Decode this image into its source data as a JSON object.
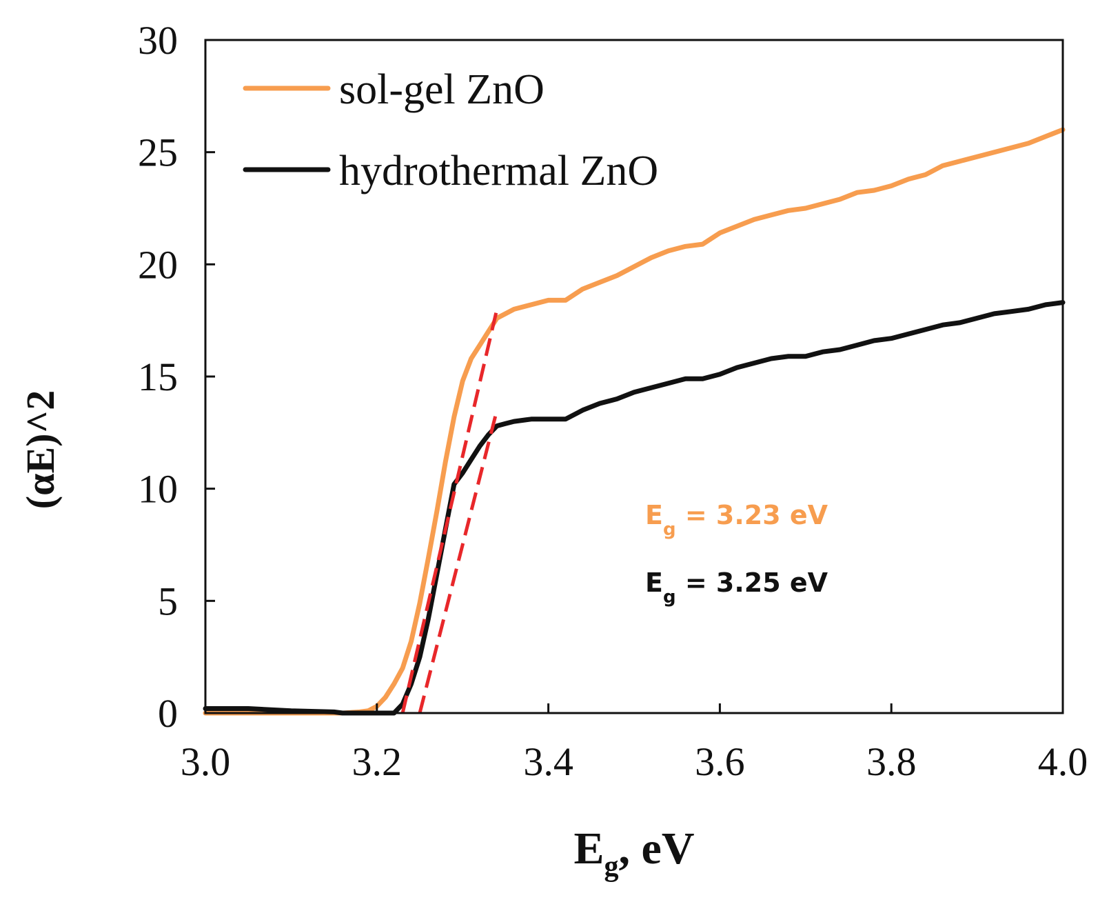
{
  "chart_data": {
    "type": "line",
    "title": "",
    "xlabel": {
      "main": "E",
      "sub": "g",
      "rest": ", eV"
    },
    "ylabel": "(αE)^2",
    "xlim": [
      3.0,
      4.0
    ],
    "ylim": [
      0,
      30
    ],
    "xticks": [
      3.0,
      3.2,
      3.4,
      3.6,
      3.8,
      4.0
    ],
    "xtick_labels": [
      "3.0",
      "3.2",
      "3.4",
      "3.6",
      "3.8",
      "4.0"
    ],
    "yticks": [
      0,
      5,
      10,
      15,
      20,
      25,
      30
    ],
    "ytick_labels": [
      "0",
      "5",
      "10",
      "15",
      "20",
      "25",
      "30"
    ],
    "grid": false,
    "legend_position": "top-left",
    "series": [
      {
        "name": "sol-gel ZnO",
        "color": "#F79D4F",
        "x": [
          3.0,
          3.1,
          3.16,
          3.18,
          3.19,
          3.2,
          3.21,
          3.22,
          3.23,
          3.24,
          3.25,
          3.26,
          3.27,
          3.28,
          3.29,
          3.3,
          3.31,
          3.32,
          3.33,
          3.34,
          3.35,
          3.36,
          3.38,
          3.4,
          3.42,
          3.44,
          3.46,
          3.48,
          3.5,
          3.52,
          3.54,
          3.56,
          3.58,
          3.6,
          3.62,
          3.64,
          3.66,
          3.68,
          3.7,
          3.72,
          3.74,
          3.76,
          3.78,
          3.8,
          3.82,
          3.84,
          3.86,
          3.88,
          3.9,
          3.92,
          3.94,
          3.96,
          3.98,
          4.0
        ],
        "y": [
          0.0,
          0.0,
          0.0,
          0.05,
          0.1,
          0.3,
          0.7,
          1.3,
          2.0,
          3.2,
          4.9,
          6.9,
          9.0,
          11.2,
          13.2,
          14.8,
          15.8,
          16.4,
          17.0,
          17.6,
          17.8,
          18.0,
          18.2,
          18.4,
          18.4,
          18.9,
          19.2,
          19.5,
          19.9,
          20.3,
          20.6,
          20.8,
          20.9,
          21.4,
          21.7,
          22.0,
          22.2,
          22.4,
          22.5,
          22.7,
          22.9,
          23.2,
          23.3,
          23.5,
          23.8,
          24.0,
          24.4,
          24.6,
          24.8,
          25.0,
          25.2,
          25.4,
          25.7,
          26.0
        ]
      },
      {
        "name": "hydrothermal ZnO",
        "color": "#111111",
        "x": [
          3.0,
          3.05,
          3.1,
          3.15,
          3.16,
          3.18,
          3.2,
          3.22,
          3.23,
          3.24,
          3.25,
          3.26,
          3.27,
          3.28,
          3.29,
          3.3,
          3.31,
          3.32,
          3.33,
          3.34,
          3.35,
          3.36,
          3.38,
          3.4,
          3.42,
          3.44,
          3.46,
          3.48,
          3.5,
          3.52,
          3.54,
          3.56,
          3.58,
          3.6,
          3.62,
          3.64,
          3.66,
          3.68,
          3.7,
          3.72,
          3.74,
          3.76,
          3.78,
          3.8,
          3.82,
          3.84,
          3.86,
          3.88,
          3.9,
          3.92,
          3.94,
          3.96,
          3.98,
          4.0
        ],
        "y": [
          0.2,
          0.2,
          0.1,
          0.05,
          0.0,
          0.0,
          0.0,
          0.0,
          0.4,
          1.3,
          2.5,
          4.2,
          6.2,
          8.2,
          10.2,
          10.7,
          11.3,
          11.9,
          12.4,
          12.8,
          12.9,
          13.0,
          13.1,
          13.1,
          13.1,
          13.5,
          13.8,
          14.0,
          14.3,
          14.5,
          14.7,
          14.9,
          14.9,
          15.1,
          15.4,
          15.6,
          15.8,
          15.9,
          15.9,
          16.1,
          16.2,
          16.4,
          16.6,
          16.7,
          16.9,
          17.1,
          17.3,
          17.4,
          17.6,
          17.8,
          17.9,
          18.0,
          18.2,
          18.3
        ]
      }
    ],
    "fit_lines": [
      {
        "name": "sol-gel tangent",
        "color": "#E8272A",
        "x": [
          3.23,
          3.34
        ],
        "y": [
          0.0,
          18.0
        ]
      },
      {
        "name": "hydrothermal tangent",
        "color": "#E8272A",
        "x": [
          3.25,
          3.34
        ],
        "y": [
          0.0,
          13.5
        ]
      }
    ],
    "annotations": [
      {
        "main": "E",
        "sub": "g",
        "rest": " = 3.23 eV",
        "color": "#F79D4F"
      },
      {
        "main": "E",
        "sub": "g",
        "rest": " = 3.25 eV",
        "color": "#111111"
      }
    ]
  }
}
